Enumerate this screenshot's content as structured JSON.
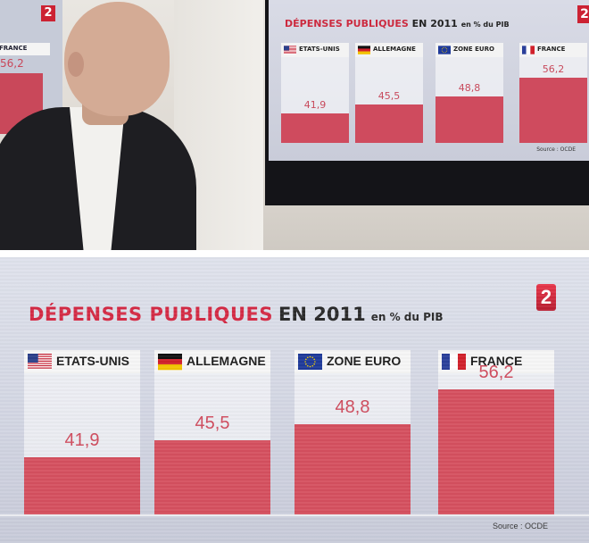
{
  "broadcast": {
    "channel_logo": "2",
    "source": "Source : OCDE"
  },
  "photo": {
    "left_screen": {
      "label": "FRANCE",
      "value": "56,2"
    }
  },
  "chart_data": {
    "type": "bar",
    "title_parts": [
      "DÉPENSES PUBLIQUES",
      "EN 2011",
      "en % du PIB"
    ],
    "categories": [
      "ETATS-UNIS",
      "ALLEMAGNE",
      "ZONE EURO",
      "FRANCE"
    ],
    "values": [
      41.9,
      45.5,
      48.8,
      56.2
    ],
    "value_labels": [
      "41,9",
      "45,5",
      "48,8",
      "56,2"
    ],
    "flags": [
      "us-flag",
      "de-flag",
      "eu-flag",
      "fr-flag"
    ],
    "source": "Source : OCDE",
    "ylim": [
      30,
      58
    ],
    "grid": false,
    "legend": "none",
    "bar_color": "#d5505f",
    "title_color": "#d42a44"
  }
}
